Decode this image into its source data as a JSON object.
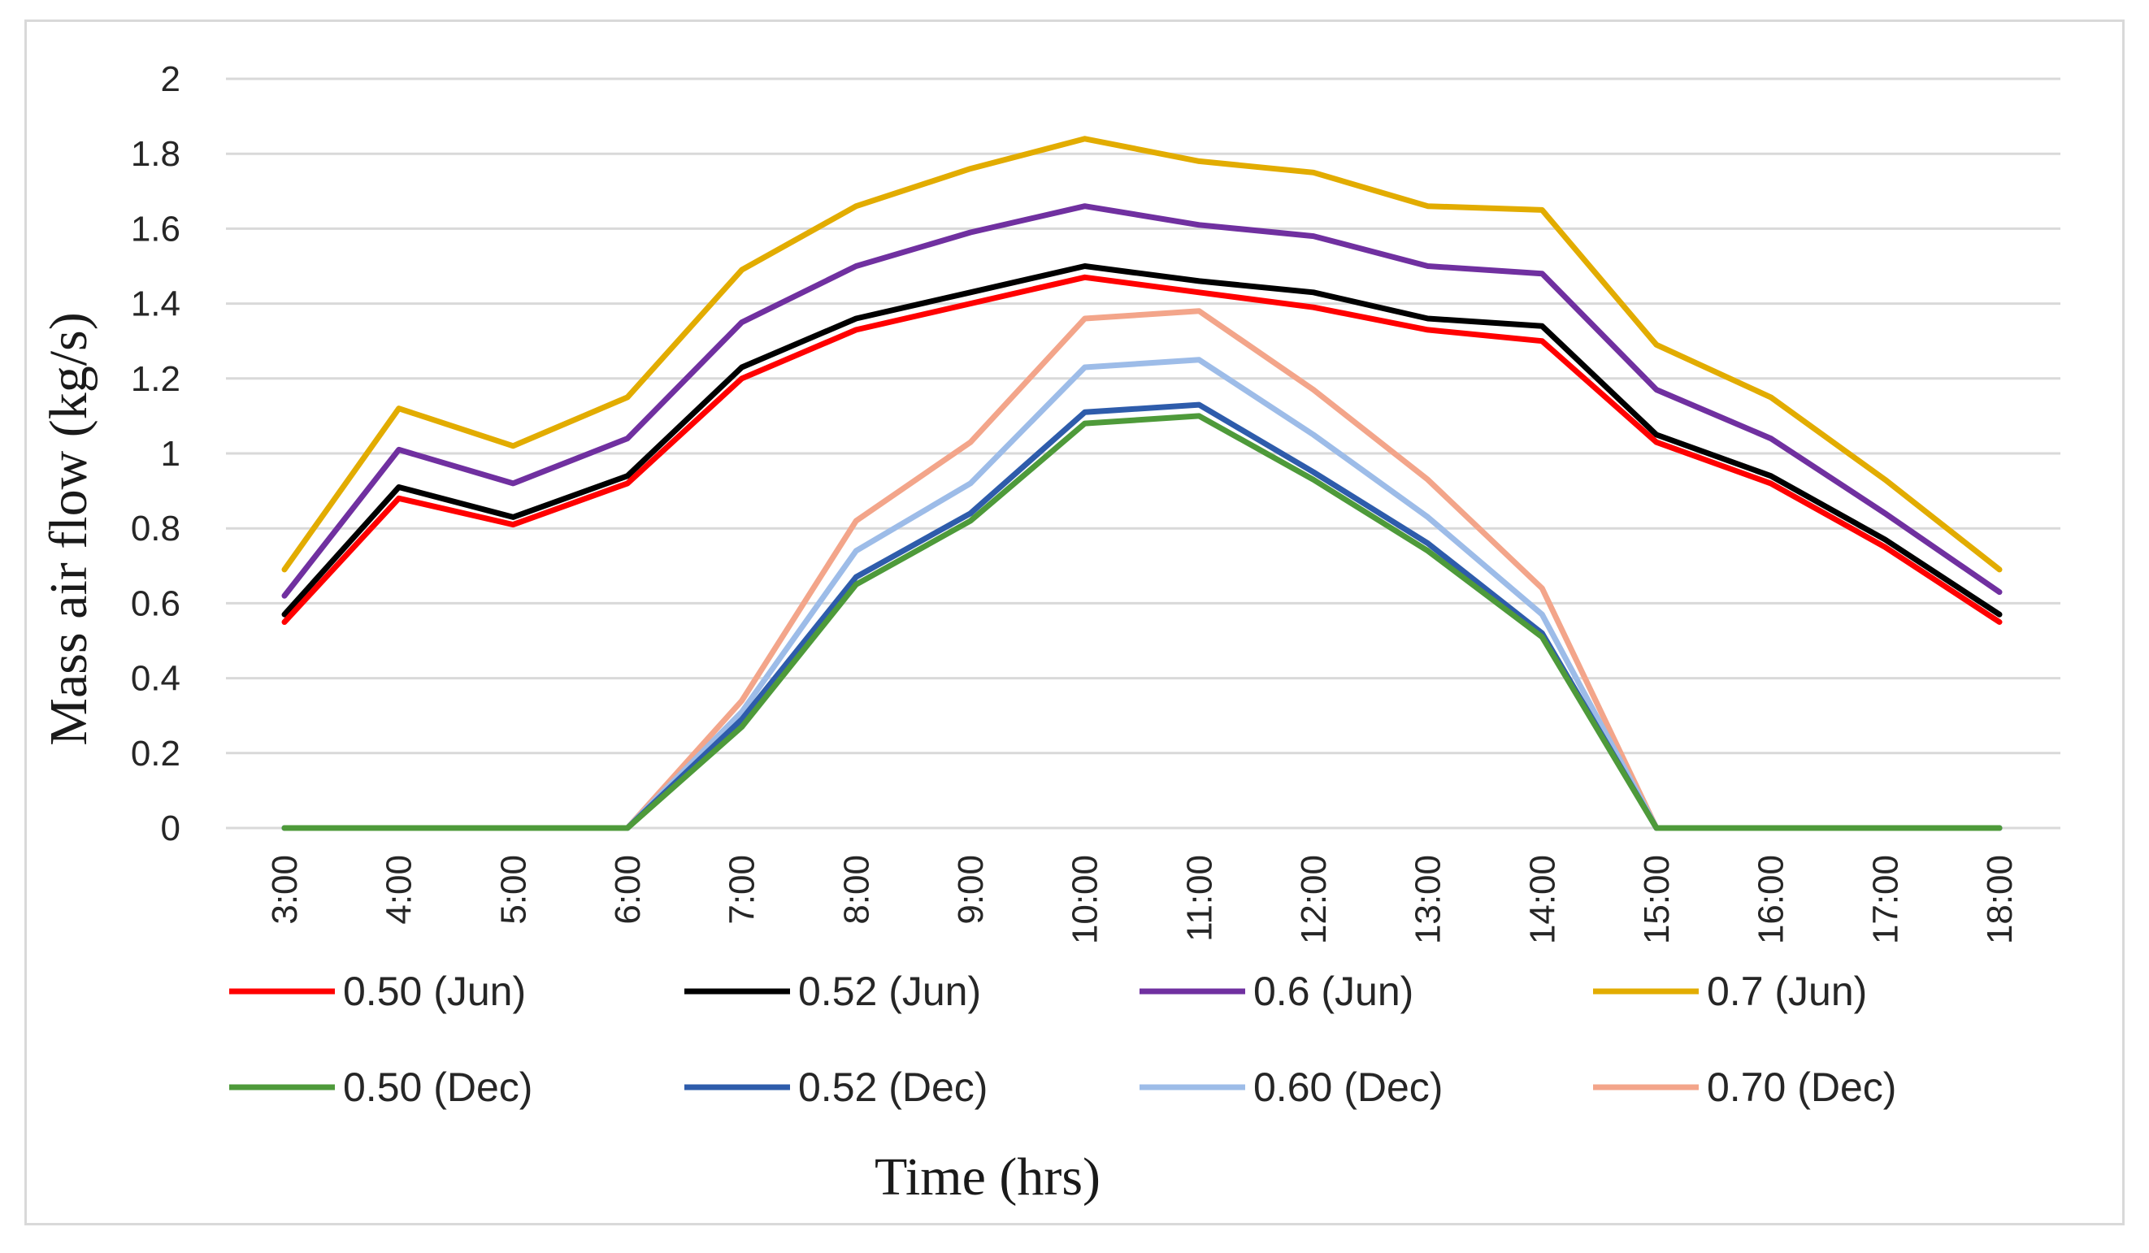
{
  "chart_data": {
    "type": "line",
    "title": "",
    "xlabel": "Time (hrs)",
    "ylabel": "Mass air flow (kg/s)",
    "ylim": [
      0,
      2
    ],
    "yticks": [
      "0",
      "0.2",
      "0.4",
      "0.6",
      "0.8",
      "1",
      "1.2",
      "1.4",
      "1.6",
      "1.8",
      "2"
    ],
    "grid": true,
    "legend_position": "bottom",
    "categories": [
      "3:00",
      "4:00",
      "5:00",
      "6:00",
      "7:00",
      "8:00",
      "9:00",
      "10:00",
      "11:00",
      "12:00",
      "13:00",
      "14:00",
      "15:00",
      "16:00",
      "17:00",
      "18:00"
    ],
    "series": [
      {
        "name": "0.50 (Jun)",
        "color": "#ff0000",
        "values": [
          0.55,
          0.88,
          0.81,
          0.92,
          1.2,
          1.33,
          1.4,
          1.47,
          1.43,
          1.39,
          1.33,
          1.3,
          1.03,
          0.92,
          0.75,
          0.55
        ]
      },
      {
        "name": "0.52 (Jun)",
        "color": "#000000",
        "values": [
          0.57,
          0.91,
          0.83,
          0.94,
          1.23,
          1.36,
          1.43,
          1.5,
          1.46,
          1.43,
          1.36,
          1.34,
          1.05,
          0.94,
          0.77,
          0.57
        ]
      },
      {
        "name": "0.6 (Jun)",
        "color": "#7030a0",
        "values": [
          0.62,
          1.01,
          0.92,
          1.04,
          1.35,
          1.5,
          1.59,
          1.66,
          1.61,
          1.58,
          1.5,
          1.48,
          1.17,
          1.04,
          0.84,
          0.63
        ]
      },
      {
        "name": "0.7 (Jun)",
        "color": "#e2ac00",
        "values": [
          0.69,
          1.12,
          1.02,
          1.15,
          1.49,
          1.66,
          1.76,
          1.84,
          1.78,
          1.75,
          1.66,
          1.65,
          1.29,
          1.15,
          0.93,
          0.69
        ]
      },
      {
        "name": "0.50 (Dec)",
        "color": "#4e9a3a",
        "values": [
          0,
          0,
          0,
          0,
          0.27,
          0.65,
          0.82,
          1.08,
          1.1,
          0.93,
          0.74,
          0.51,
          0,
          0,
          0,
          0
        ]
      },
      {
        "name": "0.52 (Dec)",
        "color": "#2e5cab",
        "values": [
          0,
          0,
          0,
          0,
          0.29,
          0.67,
          0.84,
          1.11,
          1.13,
          0.95,
          0.76,
          0.52,
          0,
          0,
          0,
          0
        ]
      },
      {
        "name": "0.60 (Dec)",
        "color": "#9dbce8",
        "values": [
          0,
          0,
          0,
          0,
          0.31,
          0.74,
          0.92,
          1.23,
          1.25,
          1.05,
          0.83,
          0.57,
          0,
          0,
          0,
          0
        ]
      },
      {
        "name": "0.70 (Dec)",
        "color": "#f3a58a",
        "values": [
          0,
          0,
          0,
          0,
          0.34,
          0.82,
          1.03,
          1.36,
          1.38,
          1.17,
          0.93,
          0.64,
          0,
          0,
          0,
          0
        ]
      }
    ]
  }
}
